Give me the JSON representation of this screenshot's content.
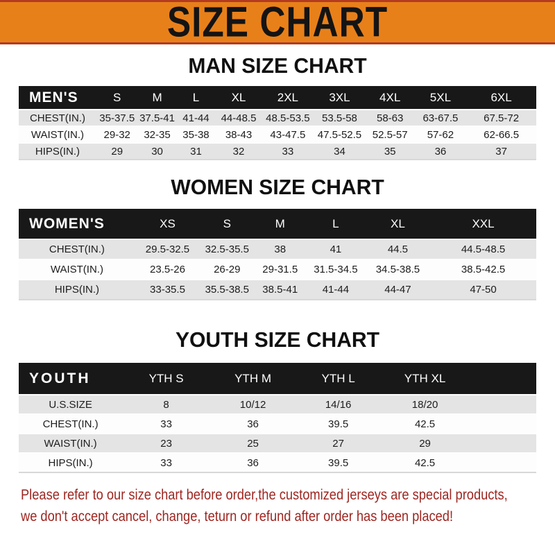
{
  "banner": {
    "title": "SIZE CHART"
  },
  "men": {
    "heading": "MAN SIZE CHART",
    "header": [
      "MEN'S",
      "S",
      "M",
      "L",
      "XL",
      "2XL",
      "3XL",
      "4XL",
      "5XL",
      "6XL"
    ],
    "rows": [
      [
        "CHEST(IN.)",
        "35-37.5",
        "37.5-41",
        "41-44",
        "44-48.5",
        "48.5-53.5",
        "53.5-58",
        "58-63",
        "63-67.5",
        "67.5-72"
      ],
      [
        "WAIST(IN.)",
        "29-32",
        "32-35",
        "35-38",
        "38-43",
        "43-47.5",
        "47.5-52.5",
        "52.5-57",
        "57-62",
        "62-66.5"
      ],
      [
        "HIPS(IN.)",
        "29",
        "30",
        "31",
        "32",
        "33",
        "34",
        "35",
        "36",
        "37"
      ]
    ]
  },
  "women": {
    "heading": "WOMEN SIZE CHART",
    "header": [
      "WOMEN'S",
      "XS",
      "S",
      "M",
      "L",
      "XL",
      "XXL"
    ],
    "rows": [
      [
        "CHEST(IN.)",
        "29.5-32.5",
        "32.5-35.5",
        "38",
        "41",
        "44.5",
        "44.5-48.5"
      ],
      [
        "WAIST(IN.)",
        "23.5-26",
        "26-29",
        "29-31.5",
        "31.5-34.5",
        "34.5-38.5",
        "38.5-42.5"
      ],
      [
        "HIPS(IN.)",
        "33-35.5",
        "35.5-38.5",
        "38.5-41",
        "41-44",
        "44-47",
        "47-50"
      ]
    ]
  },
  "youth": {
    "heading": "YOUTH SIZE CHART",
    "header": [
      "YOUTH",
      "YTH S",
      "YTH M",
      "YTH L",
      "YTH XL",
      ""
    ],
    "rows": [
      [
        "U.S.SIZE",
        "8",
        "10/12",
        "14/16",
        "18/20",
        ""
      ],
      [
        "CHEST(IN.)",
        "33",
        "36",
        "39.5",
        "42.5",
        ""
      ],
      [
        "WAIST(IN.)",
        "23",
        "25",
        "27",
        "29",
        ""
      ],
      [
        "HIPS(IN.)",
        "33",
        "36",
        "39.5",
        "42.5",
        ""
      ]
    ]
  },
  "footer": {
    "line1": "Please refer to our size chart before order,the customized jerseys are special products,",
    "line2": "we don't accept cancel, change, teturn or refund after order has been placed!"
  },
  "colors": {
    "banner-bg": "#e8801a",
    "banner-border": "#b23b22",
    "bar-bg": "#181818",
    "row-alt": "#e4e4e4",
    "row-base": "#fdfdfd",
    "note-red": "#9e2621",
    "text": "#1c1c1c"
  }
}
